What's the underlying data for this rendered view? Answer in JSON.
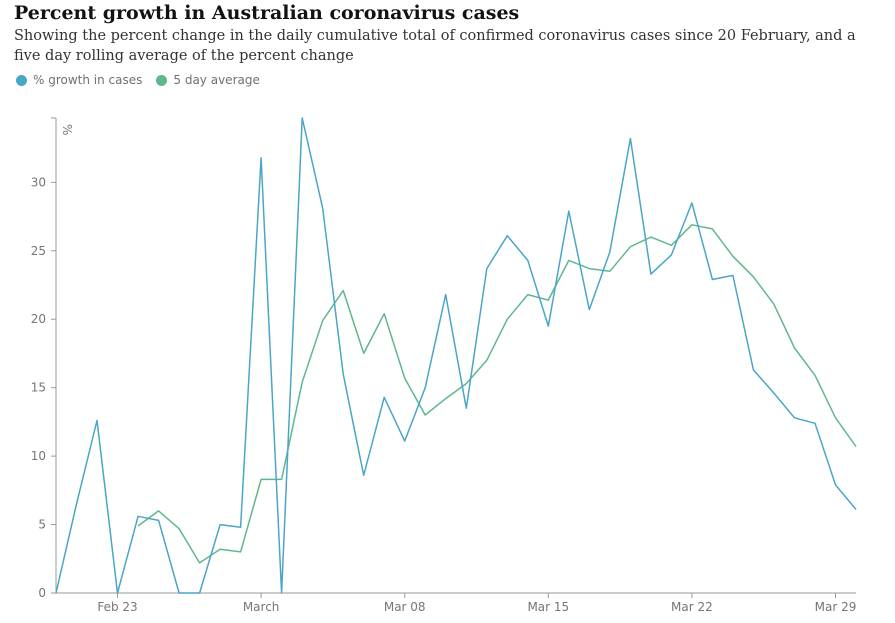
{
  "chart_data": {
    "type": "line",
    "title": "Percent growth in Australian coronavirus cases",
    "subtitle": "Showing the percent change in the daily cumulative total of confirmed coronavirus cases since 20 February, and a five day rolling average of the percent change",
    "ylabel": "%",
    "ylim": [
      0,
      34.7
    ],
    "yticks": [
      0,
      5,
      10,
      15,
      20,
      25,
      30
    ],
    "x_start_label": "Feb 20",
    "xticks": [
      {
        "index": 3,
        "label": "Feb 23"
      },
      {
        "index": 10,
        "label": "March"
      },
      {
        "index": 17,
        "label": "Mar 08"
      },
      {
        "index": 24,
        "label": "Mar 15"
      },
      {
        "index": 31,
        "label": "Mar 22"
      },
      {
        "index": 38,
        "label": "Mar 29"
      }
    ],
    "legend": "top-left",
    "series": [
      {
        "name": "% growth in cases",
        "color": "#4aa6c6",
        "values": [
          0,
          6.5,
          12.6,
          0,
          5.6,
          5.3,
          0,
          0,
          5.0,
          4.8,
          31.8,
          0,
          34.7,
          28.1,
          16.0,
          8.6,
          14.3,
          11.1,
          15.0,
          21.8,
          13.5,
          23.7,
          26.1,
          24.3,
          19.5,
          27.9,
          20.7,
          24.9,
          33.2,
          23.3,
          24.7,
          28.5,
          22.9,
          23.2,
          16.3,
          14.6,
          12.8,
          12.4,
          7.9,
          6.1
        ]
      },
      {
        "name": "5 day average",
        "color": "#5fb88c",
        "values": [
          null,
          null,
          null,
          null,
          4.9,
          6.0,
          4.7,
          2.2,
          3.2,
          3.0,
          8.3,
          8.3,
          15.4,
          19.9,
          22.1,
          17.5,
          20.4,
          15.7,
          13.0,
          14.2,
          15.3,
          17.0,
          20.0,
          21.8,
          21.4,
          24.3,
          23.7,
          23.5,
          25.3,
          26.0,
          25.4,
          26.9,
          26.6,
          24.6,
          23.1,
          21.1,
          17.9,
          15.9,
          12.8,
          10.7
        ]
      }
    ]
  }
}
